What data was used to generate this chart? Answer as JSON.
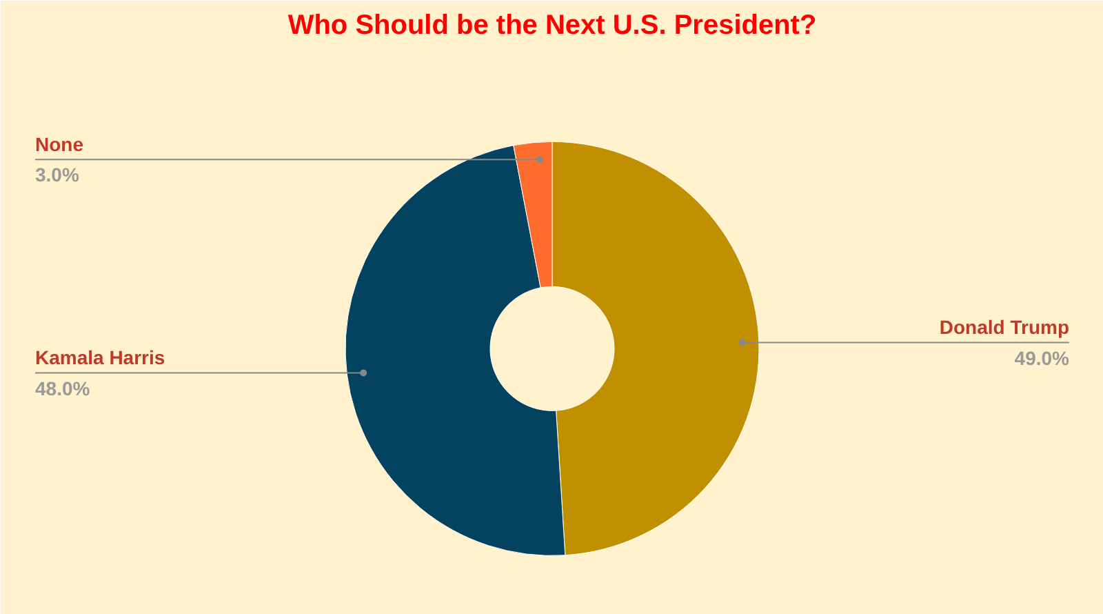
{
  "chart_data": {
    "type": "donut",
    "title": "Who Should be the Next U.S. President?",
    "categories": [
      "Donald Trump",
      "Kamala Harris",
      "None"
    ],
    "values": [
      49,
      48,
      3
    ],
    "colors": [
      "#c09000",
      "#03435f",
      "#ff6d2e"
    ],
    "value_labels": [
      "49.0%",
      "48.0%",
      "3.0%"
    ]
  }
}
